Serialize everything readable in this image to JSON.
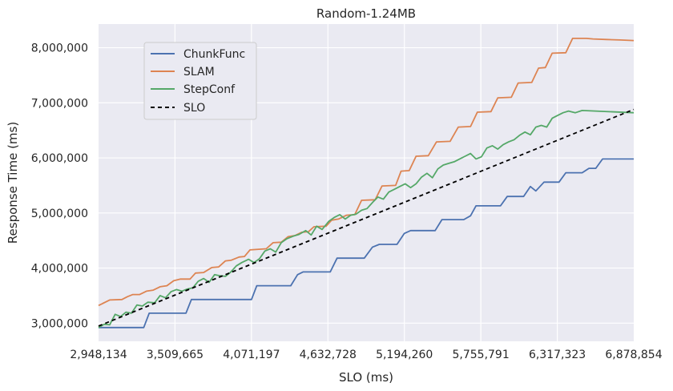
{
  "chart_data": {
    "type": "line",
    "title": "Random-1.24MB",
    "xlabel": "SLO (ms)",
    "ylabel": "Response Time (ms)",
    "xlim": [
      2948134,
      6878854
    ],
    "ylim": [
      2670000,
      8430000
    ],
    "grid": true,
    "legend_position": "top-left",
    "x_ticks": [
      2948134,
      3509665,
      4071197,
      4632728,
      5194260,
      5755791,
      6317323,
      6878854
    ],
    "x_tick_labels": [
      "2,948,134",
      "3,509,665",
      "4,071,197",
      "4,632,728",
      "5,194,260",
      "5,755,791",
      "6,317,323",
      "6,878,854"
    ],
    "y_ticks": [
      3000000,
      4000000,
      5000000,
      6000000,
      7000000,
      8000000
    ],
    "y_tick_labels": [
      "3,000,000",
      "4,000,000",
      "5,000,000",
      "6,000,000",
      "7,000,000",
      "8,000,000"
    ],
    "series": [
      {
        "name": "ChunkFunc",
        "color": "#4c72b0",
        "dash": "solid",
        "points": [
          [
            2948134,
            2920000
          ],
          [
            3280000,
            2920000
          ],
          [
            3320000,
            3180000
          ],
          [
            3590000,
            3180000
          ],
          [
            3630000,
            3430000
          ],
          [
            4071197,
            3430000
          ],
          [
            4110000,
            3680000
          ],
          [
            4360000,
            3680000
          ],
          [
            4410000,
            3880000
          ],
          [
            4450000,
            3930000
          ],
          [
            4650000,
            3930000
          ],
          [
            4700000,
            4180000
          ],
          [
            4900000,
            4180000
          ],
          [
            4960000,
            4380000
          ],
          [
            5010000,
            4430000
          ],
          [
            5140000,
            4430000
          ],
          [
            5194260,
            4630000
          ],
          [
            5240000,
            4680000
          ],
          [
            5420000,
            4680000
          ],
          [
            5470000,
            4880000
          ],
          [
            5630000,
            4880000
          ],
          [
            5680000,
            4950000
          ],
          [
            5720000,
            5130000
          ],
          [
            5900000,
            5130000
          ],
          [
            5950000,
            5300000
          ],
          [
            6070000,
            5300000
          ],
          [
            6120000,
            5480000
          ],
          [
            6160000,
            5400000
          ],
          [
            6220000,
            5560000
          ],
          [
            6330000,
            5560000
          ],
          [
            6380000,
            5730000
          ],
          [
            6500000,
            5730000
          ],
          [
            6550000,
            5810000
          ],
          [
            6600000,
            5810000
          ],
          [
            6650000,
            5980000
          ],
          [
            6878854,
            5980000
          ]
        ]
      },
      {
        "name": "SLAM",
        "color": "#dd8452",
        "dash": "solid",
        "points": [
          [
            2948134,
            3320000
          ],
          [
            3030000,
            3420000
          ],
          [
            3120000,
            3430000
          ],
          [
            3160000,
            3480000
          ],
          [
            3200000,
            3520000
          ],
          [
            3250000,
            3520000
          ],
          [
            3300000,
            3580000
          ],
          [
            3350000,
            3600000
          ],
          [
            3400000,
            3660000
          ],
          [
            3450000,
            3680000
          ],
          [
            3500000,
            3770000
          ],
          [
            3550000,
            3800000
          ],
          [
            3620000,
            3800000
          ],
          [
            3660000,
            3910000
          ],
          [
            3720000,
            3920000
          ],
          [
            3780000,
            4010000
          ],
          [
            3830000,
            4020000
          ],
          [
            3880000,
            4130000
          ],
          [
            3920000,
            4140000
          ],
          [
            3980000,
            4200000
          ],
          [
            4020000,
            4210000
          ],
          [
            4060000,
            4330000
          ],
          [
            4180000,
            4350000
          ],
          [
            4230000,
            4460000
          ],
          [
            4290000,
            4470000
          ],
          [
            4340000,
            4570000
          ],
          [
            4390000,
            4590000
          ],
          [
            4440000,
            4650000
          ],
          [
            4490000,
            4660000
          ],
          [
            4530000,
            4750000
          ],
          [
            4620000,
            4760000
          ],
          [
            4660000,
            4870000
          ],
          [
            4710000,
            4890000
          ],
          [
            4770000,
            4960000
          ],
          [
            4830000,
            4970000
          ],
          [
            4880000,
            5230000
          ],
          [
            4980000,
            5240000
          ],
          [
            5030000,
            5490000
          ],
          [
            5130000,
            5500000
          ],
          [
            5170000,
            5760000
          ],
          [
            5230000,
            5770000
          ],
          [
            5280000,
            6030000
          ],
          [
            5370000,
            6040000
          ],
          [
            5430000,
            6290000
          ],
          [
            5530000,
            6300000
          ],
          [
            5590000,
            6560000
          ],
          [
            5680000,
            6570000
          ],
          [
            5730000,
            6830000
          ],
          [
            5830000,
            6840000
          ],
          [
            5880000,
            7090000
          ],
          [
            5980000,
            7100000
          ],
          [
            6030000,
            7360000
          ],
          [
            6130000,
            7370000
          ],
          [
            6180000,
            7630000
          ],
          [
            6230000,
            7640000
          ],
          [
            6280000,
            7900000
          ],
          [
            6380000,
            7910000
          ],
          [
            6430000,
            8170000
          ],
          [
            6530000,
            8170000
          ],
          [
            6580000,
            8160000
          ],
          [
            6680000,
            8150000
          ],
          [
            6780000,
            8140000
          ],
          [
            6878854,
            8130000
          ]
        ]
      },
      {
        "name": "StepConf",
        "color": "#55a868",
        "dash": "solid",
        "points": [
          [
            2948134,
            2920000
          ],
          [
            2990000,
            2980000
          ],
          [
            3030000,
            2970000
          ],
          [
            3070000,
            3160000
          ],
          [
            3110000,
            3120000
          ],
          [
            3150000,
            3200000
          ],
          [
            3190000,
            3180000
          ],
          [
            3230000,
            3330000
          ],
          [
            3270000,
            3310000
          ],
          [
            3310000,
            3380000
          ],
          [
            3360000,
            3370000
          ],
          [
            3400000,
            3500000
          ],
          [
            3440000,
            3460000
          ],
          [
            3480000,
            3570000
          ],
          [
            3520000,
            3610000
          ],
          [
            3560000,
            3580000
          ],
          [
            3600000,
            3620000
          ],
          [
            3640000,
            3640000
          ],
          [
            3680000,
            3760000
          ],
          [
            3720000,
            3810000
          ],
          [
            3760000,
            3740000
          ],
          [
            3800000,
            3880000
          ],
          [
            3840000,
            3860000
          ],
          [
            3880000,
            3850000
          ],
          [
            3920000,
            3930000
          ],
          [
            3960000,
            4040000
          ],
          [
            4000000,
            4100000
          ],
          [
            4050000,
            4160000
          ],
          [
            4090000,
            4100000
          ],
          [
            4130000,
            4170000
          ],
          [
            4170000,
            4310000
          ],
          [
            4210000,
            4350000
          ],
          [
            4250000,
            4290000
          ],
          [
            4290000,
            4460000
          ],
          [
            4330000,
            4530000
          ],
          [
            4380000,
            4580000
          ],
          [
            4420000,
            4610000
          ],
          [
            4470000,
            4680000
          ],
          [
            4510000,
            4600000
          ],
          [
            4550000,
            4760000
          ],
          [
            4590000,
            4700000
          ],
          [
            4640000,
            4850000
          ],
          [
            4680000,
            4920000
          ],
          [
            4720000,
            4970000
          ],
          [
            4760000,
            4890000
          ],
          [
            4800000,
            4960000
          ],
          [
            4840000,
            4980000
          ],
          [
            4880000,
            5050000
          ],
          [
            4920000,
            5080000
          ],
          [
            4960000,
            5190000
          ],
          [
            5000000,
            5290000
          ],
          [
            5040000,
            5250000
          ],
          [
            5080000,
            5380000
          ],
          [
            5120000,
            5430000
          ],
          [
            5160000,
            5480000
          ],
          [
            5200000,
            5530000
          ],
          [
            5240000,
            5460000
          ],
          [
            5280000,
            5530000
          ],
          [
            5320000,
            5650000
          ],
          [
            5360000,
            5720000
          ],
          [
            5400000,
            5640000
          ],
          [
            5440000,
            5800000
          ],
          [
            5480000,
            5870000
          ],
          [
            5520000,
            5900000
          ],
          [
            5560000,
            5930000
          ],
          [
            5600000,
            5980000
          ],
          [
            5640000,
            6030000
          ],
          [
            5680000,
            6080000
          ],
          [
            5720000,
            5980000
          ],
          [
            5760000,
            6020000
          ],
          [
            5800000,
            6180000
          ],
          [
            5840000,
            6220000
          ],
          [
            5880000,
            6160000
          ],
          [
            5920000,
            6240000
          ],
          [
            5960000,
            6290000
          ],
          [
            6000000,
            6330000
          ],
          [
            6040000,
            6410000
          ],
          [
            6080000,
            6470000
          ],
          [
            6120000,
            6420000
          ],
          [
            6160000,
            6560000
          ],
          [
            6200000,
            6590000
          ],
          [
            6240000,
            6560000
          ],
          [
            6280000,
            6720000
          ],
          [
            6320000,
            6770000
          ],
          [
            6360000,
            6820000
          ],
          [
            6400000,
            6850000
          ],
          [
            6450000,
            6820000
          ],
          [
            6500000,
            6860000
          ],
          [
            6878854,
            6820000
          ]
        ]
      },
      {
        "name": "SLO",
        "color": "#000000",
        "dash": "dashed",
        "points": [
          [
            2948134,
            2948134
          ],
          [
            6878854,
            6878854
          ]
        ]
      }
    ]
  }
}
